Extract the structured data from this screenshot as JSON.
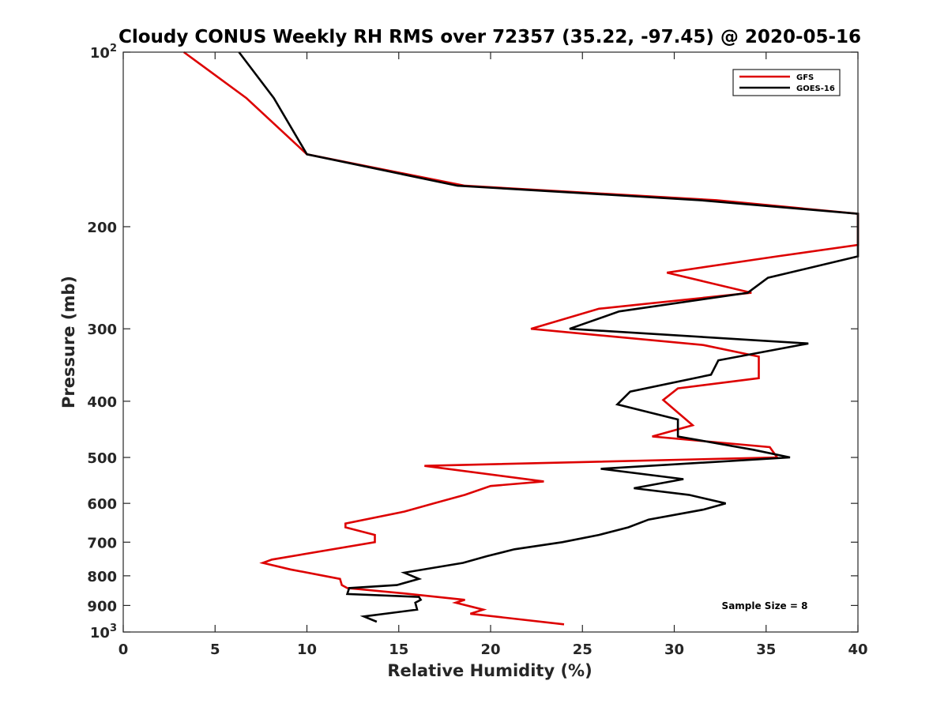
{
  "chart_data": {
    "type": "line",
    "title": "Cloudy CONUS Weekly RH RMS over 72357 (35.22, -97.45) @ 2020-05-16",
    "xlabel": "Relative Humidity (%)",
    "ylabel": "Pressure (mb)",
    "xlim": [
      0,
      40
    ],
    "ylim": [
      1000,
      100
    ],
    "y_scale": "log",
    "y_reversed": true,
    "x_ticks": [
      0,
      5,
      10,
      15,
      20,
      25,
      30,
      35,
      40
    ],
    "y_ticks": [
      {
        "value": 100,
        "base": "10",
        "exp": "2"
      },
      {
        "value": 200,
        "label": "200"
      },
      {
        "value": 300,
        "label": "300"
      },
      {
        "value": 400,
        "label": "400"
      },
      {
        "value": 500,
        "label": "500"
      },
      {
        "value": 600,
        "label": "600"
      },
      {
        "value": 700,
        "label": "700"
      },
      {
        "value": 800,
        "label": "800"
      },
      {
        "value": 900,
        "label": "900"
      },
      {
        "value": 1000,
        "base": "10",
        "exp": "3"
      }
    ],
    "grid": false,
    "legend_position": "top-right",
    "annotation": "Sample Size = 8",
    "series": [
      {
        "name": "GFS",
        "color": "#dd0000",
        "points": [
          [
            3.3,
            100
          ],
          [
            6.7,
            120
          ],
          [
            10.0,
            150
          ],
          [
            18.6,
            170
          ],
          [
            32.3,
            180
          ],
          [
            40.0,
            190
          ],
          [
            40.0,
            215
          ],
          [
            35.6,
            225
          ],
          [
            29.6,
            240
          ],
          [
            34.2,
            260
          ],
          [
            25.9,
            277
          ],
          [
            22.2,
            300
          ],
          [
            31.6,
            320
          ],
          [
            34.6,
            335
          ],
          [
            34.6,
            365
          ],
          [
            30.2,
            380
          ],
          [
            29.4,
            398
          ],
          [
            31.0,
            440
          ],
          [
            28.8,
            460
          ],
          [
            35.2,
            480
          ],
          [
            35.6,
            500
          ],
          [
            16.4,
            517
          ],
          [
            22.9,
            550
          ],
          [
            20.0,
            560
          ],
          [
            18.6,
            580
          ],
          [
            16.9,
            600
          ],
          [
            15.3,
            620
          ],
          [
            12.1,
            650
          ],
          [
            12.1,
            660
          ],
          [
            13.7,
            680
          ],
          [
            13.7,
            700
          ],
          [
            8.1,
            750
          ],
          [
            7.6,
            760
          ],
          [
            9.1,
            780
          ],
          [
            11.8,
            810
          ],
          [
            11.9,
            830
          ],
          [
            12.2,
            840
          ],
          [
            15.3,
            858
          ],
          [
            18.6,
            880
          ],
          [
            18.1,
            890
          ],
          [
            19.6,
            915
          ],
          [
            18.9,
            930
          ],
          [
            24.0,
            970
          ]
        ]
      },
      {
        "name": "GOES-16",
        "color": "#000000",
        "points": [
          [
            6.3,
            100
          ],
          [
            8.2,
            120
          ],
          [
            10.0,
            150
          ],
          [
            18.2,
            170
          ],
          [
            31.4,
            180
          ],
          [
            40.0,
            190
          ],
          [
            40.0,
            225
          ],
          [
            35.1,
            245
          ],
          [
            34.0,
            260
          ],
          [
            27.0,
            280
          ],
          [
            24.3,
            300
          ],
          [
            37.3,
            318
          ],
          [
            32.4,
            340
          ],
          [
            32.0,
            360
          ],
          [
            27.6,
            385
          ],
          [
            26.9,
            405
          ],
          [
            30.2,
            430
          ],
          [
            30.2,
            460
          ],
          [
            34.3,
            485
          ],
          [
            36.3,
            500
          ],
          [
            26.0,
            523
          ],
          [
            30.5,
            545
          ],
          [
            27.8,
            565
          ],
          [
            30.8,
            580
          ],
          [
            32.8,
            600
          ],
          [
            31.6,
            615
          ],
          [
            28.6,
            640
          ],
          [
            27.5,
            660
          ],
          [
            25.9,
            680
          ],
          [
            23.9,
            700
          ],
          [
            21.3,
            720
          ],
          [
            19.8,
            740
          ],
          [
            18.5,
            760
          ],
          [
            15.3,
            790
          ],
          [
            16.1,
            810
          ],
          [
            14.9,
            830
          ],
          [
            12.3,
            840
          ],
          [
            12.2,
            860
          ],
          [
            16.1,
            870
          ],
          [
            16.2,
            880
          ],
          [
            15.9,
            890
          ],
          [
            16.0,
            915
          ],
          [
            13.1,
            940
          ],
          [
            13.8,
            960
          ]
        ]
      }
    ]
  }
}
